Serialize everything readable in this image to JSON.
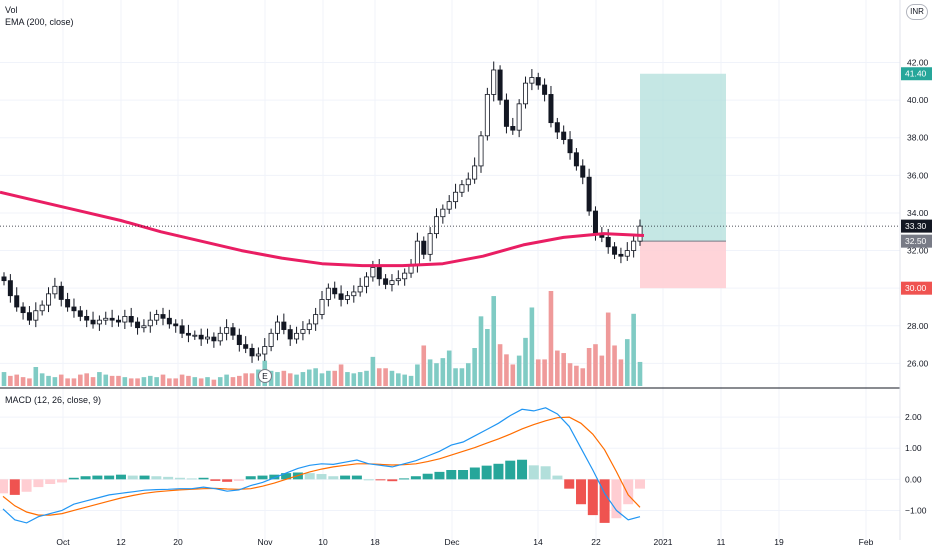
{
  "legend": {
    "vol": "Vol",
    "ema": "EMA (200, close)",
    "macd": "MACD (12, 26, close, 9)"
  },
  "currency": "INR",
  "earnings_marker": "E",
  "colors": {
    "up": "#26a69a",
    "down": "#ef5350",
    "candle": "#131722",
    "ema": "#e91e63",
    "macd_line": "#2196f3",
    "signal_line": "#ff6d00",
    "target_zone": "#b2dfdb",
    "stop_zone": "#ffcdd2",
    "grid": "#f0f3fa"
  },
  "chart_data": [
    {
      "type": "candlestick",
      "name": "price",
      "yaxis": {
        "ticks": [
          "26.00",
          "28.00",
          "30.00",
          "32.00",
          "34.00",
          "36.00",
          "38.00",
          "40.00",
          "42.00"
        ],
        "range": [
          24.8,
          43.3
        ]
      },
      "xaxis": {
        "ticks": [
          "Oct",
          "12",
          "20",
          "Nov",
          "10",
          "18",
          "Dec",
          "14",
          "22",
          "2021",
          "11",
          "19",
          "Feb"
        ]
      },
      "price_tags": [
        {
          "label": "41.40",
          "value": 41.4,
          "color": "#26a69a"
        },
        {
          "label": "33.30",
          "value": 33.3,
          "color": "#131722"
        },
        {
          "label": "32.50",
          "value": 32.5,
          "color": "#787b86"
        },
        {
          "label": "30.00",
          "value": 30.0,
          "color": "#ef5350"
        }
      ],
      "position": {
        "entry": 32.5,
        "target": 41.4,
        "stop": 30.0
      },
      "last_close": 33.3,
      "ema200": [
        35.1,
        34.6,
        34.1,
        33.6,
        33.0,
        32.5,
        32.0,
        31.6,
        31.3,
        31.2,
        31.2,
        31.3,
        31.7,
        32.3,
        32.7,
        32.9,
        32.8
      ],
      "closes": [
        30.4,
        29.6,
        29.0,
        28.7,
        28.3,
        28.8,
        29.1,
        29.7,
        30.1,
        29.4,
        29.0,
        28.8,
        28.5,
        28.3,
        28.1,
        28.3,
        28.4,
        28.3,
        28.2,
        28.5,
        28.2,
        27.9,
        28.0,
        28.3,
        28.6,
        28.4,
        28.1,
        28.0,
        27.6,
        27.5,
        27.5,
        27.3,
        27.4,
        27.2,
        27.6,
        27.9,
        27.5,
        27.0,
        26.8,
        26.4,
        26.5,
        26.9,
        27.6,
        28.2,
        27.8,
        27.3,
        27.6,
        27.8,
        28.1,
        28.6,
        29.4,
        30.0,
        29.7,
        29.4,
        29.6,
        29.8,
        30.1,
        30.6,
        31.1,
        30.5,
        30.2,
        30.4,
        30.5,
        30.8,
        31.2,
        32.5,
        31.8,
        32.9,
        33.8,
        34.2,
        34.6,
        35.1,
        35.5,
        35.8,
        36.5,
        38.1,
        40.3,
        41.6,
        40.0,
        38.6,
        38.4,
        39.8,
        40.9,
        41.2,
        40.8,
        40.3,
        38.8,
        38.3,
        37.9,
        37.2,
        36.5,
        35.9,
        34.1,
        32.9,
        32.7,
        32.2,
        31.8,
        31.7,
        32.0,
        32.5,
        33.3
      ]
    },
    {
      "type": "bar",
      "name": "volume",
      "values": [
        1.1,
        0.8,
        0.9,
        0.7,
        0.6,
        1.5,
        1.0,
        0.8,
        0.7,
        0.9,
        0.6,
        0.6,
        0.9,
        1.0,
        0.7,
        1.1,
        0.9,
        0.8,
        0.8,
        0.7,
        0.6,
        0.6,
        0.7,
        0.8,
        0.7,
        0.9,
        0.6,
        0.6,
        0.9,
        0.8,
        0.7,
        0.6,
        0.7,
        0.5,
        0.7,
        0.9,
        0.7,
        0.8,
        1.0,
        1.0,
        1.3,
        2.0,
        1.2,
        1.1,
        1.2,
        1.0,
        0.9,
        1.1,
        1.3,
        1.4,
        1.0,
        1.2,
        1.2,
        1.7,
        1.1,
        1.0,
        1.1,
        1.2,
        2.3,
        1.4,
        1.4,
        1.2,
        1.0,
        0.9,
        0.8,
        1.7,
        3.2,
        2.1,
        1.8,
        2.2,
        2.8,
        1.4,
        1.4,
        1.8,
        3.0,
        5.5,
        4.5,
        7.1,
        3.3,
        2.5,
        1.7,
        2.4,
        3.8,
        6.2,
        2.1,
        2.1,
        7.5,
        2.8,
        2.6,
        1.8,
        1.6,
        1.4,
        3.0,
        3.3,
        2.4,
        5.8,
        3.2,
        2.1,
        3.7,
        5.7,
        1.9
      ]
    },
    {
      "type": "line",
      "name": "macd",
      "yaxis": {
        "ticks": [
          "2.00",
          "1.00",
          "0.00",
          "−1.00"
        ],
        "range": [
          -1.95,
          2.55
        ]
      },
      "series": [
        {
          "name": "MACD",
          "values": [
            -0.95,
            -1.3,
            -1.4,
            -1.2,
            -1.1,
            -1.0,
            -0.8,
            -0.7,
            -0.6,
            -0.5,
            -0.45,
            -0.4,
            -0.35,
            -0.33,
            -0.32,
            -0.3,
            -0.3,
            -0.25,
            -0.3,
            -0.38,
            -0.34,
            -0.2,
            -0.1,
            0.05,
            0.2,
            0.35,
            0.45,
            0.5,
            0.48,
            0.55,
            0.62,
            0.5,
            0.45,
            0.4,
            0.5,
            0.6,
            0.75,
            0.9,
            1.1,
            1.2,
            1.4,
            1.6,
            1.8,
            2.05,
            2.25,
            2.2,
            2.3,
            2.1,
            1.7,
            1.0,
            0.3,
            -0.45,
            -1.0,
            -1.3,
            -1.2
          ]
        },
        {
          "name": "Signal",
          "values": [
            -0.55,
            -0.85,
            -1.05,
            -1.15,
            -1.15,
            -1.1,
            -1.0,
            -0.9,
            -0.8,
            -0.7,
            -0.6,
            -0.52,
            -0.45,
            -0.4,
            -0.37,
            -0.34,
            -0.32,
            -0.3,
            -0.29,
            -0.31,
            -0.32,
            -0.3,
            -0.22,
            -0.12,
            0.0,
            0.12,
            0.24,
            0.33,
            0.4,
            0.45,
            0.5,
            0.5,
            0.48,
            0.46,
            0.47,
            0.5,
            0.57,
            0.66,
            0.78,
            0.9,
            1.02,
            1.16,
            1.3,
            1.45,
            1.62,
            1.76,
            1.88,
            1.98,
            2.0,
            1.8,
            1.45,
            0.95,
            0.25,
            -0.5,
            -0.9
          ]
        },
        {
          "name": "Histogram",
          "values": [
            -0.45,
            -0.5,
            -0.4,
            -0.25,
            -0.15,
            -0.1,
            0.05,
            0.1,
            0.12,
            0.12,
            0.15,
            0.12,
            0.12,
            0.1,
            0.08,
            0.05,
            0.03,
            0.05,
            -0.05,
            -0.08,
            -0.05,
            0.1,
            0.12,
            0.15,
            0.2,
            0.22,
            0.2,
            0.17,
            0.1,
            0.12,
            0.12,
            0.0,
            -0.03,
            -0.06,
            0.03,
            0.1,
            0.18,
            0.24,
            0.3,
            0.3,
            0.38,
            0.44,
            0.5,
            0.6,
            0.63,
            0.45,
            0.42,
            0.12,
            -0.3,
            -0.8,
            -1.15,
            -1.4,
            -1.25,
            -0.8,
            -0.3
          ]
        }
      ]
    }
  ]
}
